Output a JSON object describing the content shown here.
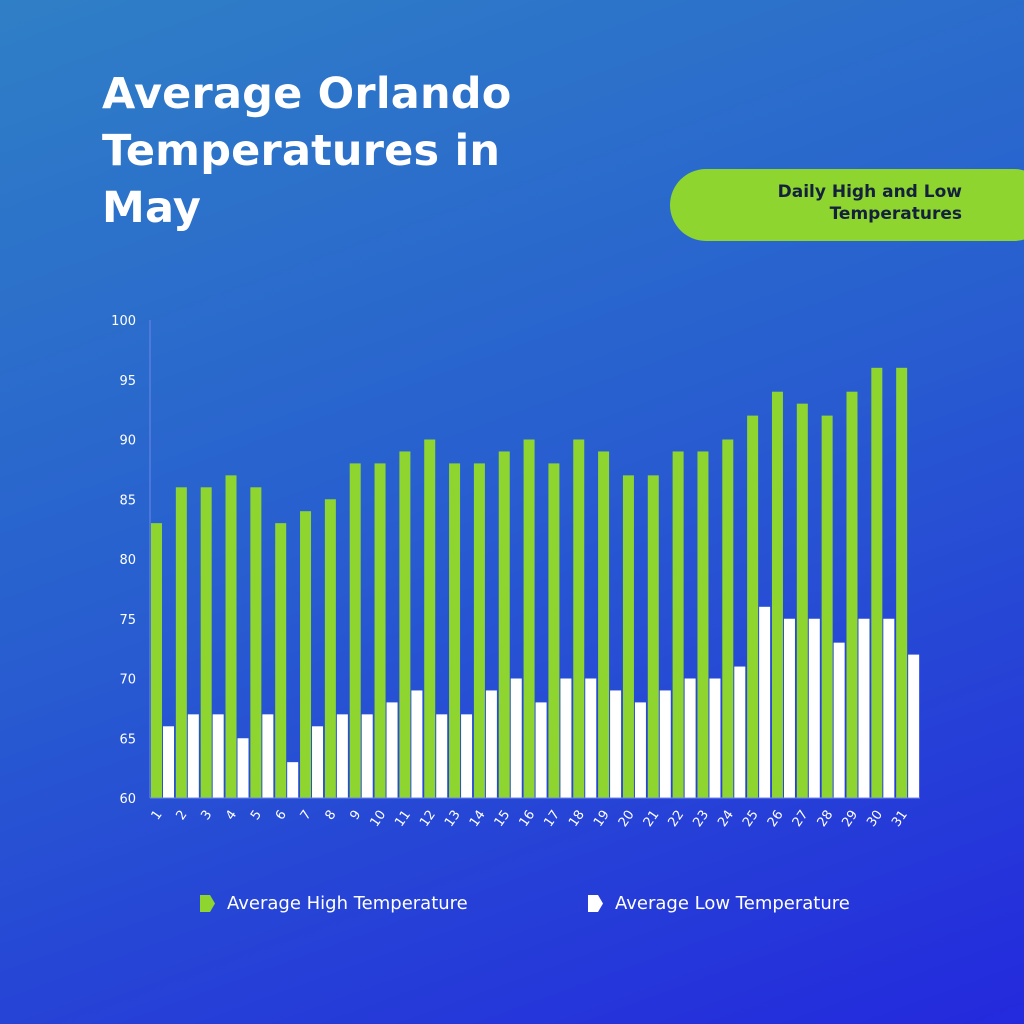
{
  "header": {
    "title": "Average Orlando Temperatures in May",
    "badge": "Daily High and Low Temperatures"
  },
  "colors": {
    "high": "#8ed52f",
    "low": "#ffffff",
    "axis": "#6f88e8"
  },
  "legend": {
    "high_label": "Average High Temperature",
    "low_label": "Average Low Temperature"
  },
  "chart_data": {
    "type": "bar",
    "title": "Average Orlando Temperatures in May",
    "subtitle": "Daily High and Low Temperatures",
    "xlabel": "",
    "ylabel": "",
    "ylim": [
      60,
      100
    ],
    "yticks": [
      60,
      65,
      70,
      75,
      80,
      85,
      90,
      95,
      100
    ],
    "grid": false,
    "legend_position": "bottom",
    "categories": [
      "1",
      "2",
      "3",
      "4",
      "5",
      "6",
      "7",
      "8",
      "9",
      "10",
      "11",
      "12",
      "13",
      "14",
      "15",
      "16",
      "17",
      "18",
      "19",
      "20",
      "21",
      "22",
      "23",
      "24",
      "25",
      "26",
      "27",
      "28",
      "29",
      "30",
      "31"
    ],
    "series": [
      {
        "name": "Average High Temperature",
        "values": [
          83,
          86,
          86,
          87,
          86,
          83,
          84,
          85,
          88,
          88,
          89,
          90,
          88,
          88,
          89,
          90,
          88,
          90,
          89,
          87,
          87,
          89,
          89,
          90,
          92,
          94,
          93,
          92,
          94,
          96,
          96
        ]
      },
      {
        "name": "Average Low Temperature",
        "values": [
          66,
          67,
          67,
          65,
          67,
          63,
          66,
          67,
          67,
          68,
          69,
          67,
          67,
          69,
          70,
          68,
          70,
          70,
          69,
          68,
          69,
          70,
          70,
          71,
          76,
          75,
          75,
          73,
          75,
          75,
          72
        ]
      }
    ]
  }
}
